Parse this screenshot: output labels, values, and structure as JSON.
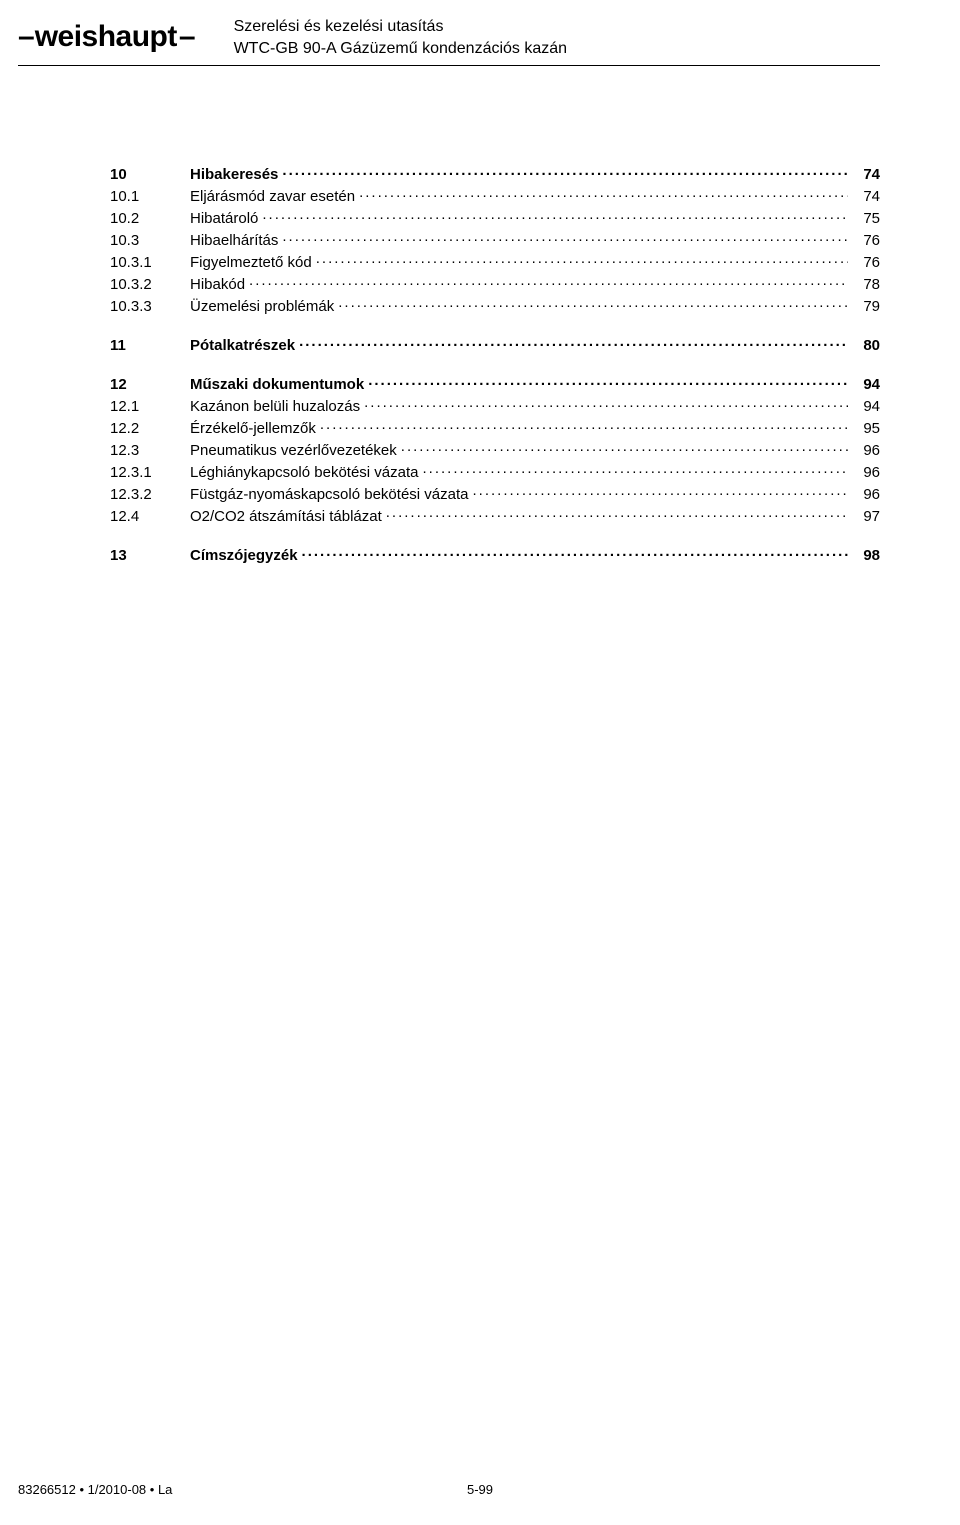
{
  "header": {
    "logo_text": "weishaupt",
    "line1": "Szerelési és kezelési utasítás",
    "line2": "WTC-GB 90-A Gázüzemű kondenzációs kazán"
  },
  "toc": [
    {
      "group": [
        {
          "num": "10",
          "title": "Hibakeresés",
          "page": "74",
          "bold": true
        },
        {
          "num": "10.1",
          "title": "Eljárásmód zavar esetén",
          "page": "74",
          "bold": false
        },
        {
          "num": "10.2",
          "title": "Hibatároló",
          "page": "75",
          "bold": false
        },
        {
          "num": "10.3",
          "title": "Hibaelhárítás",
          "page": "76",
          "bold": false
        },
        {
          "num": "10.3.1",
          "title": "Figyelmeztető kód",
          "page": "76",
          "bold": false
        },
        {
          "num": "10.3.2",
          "title": "Hibakód",
          "page": "78",
          "bold": false
        },
        {
          "num": "10.3.3",
          "title": "Üzemelési problémák",
          "page": "79",
          "bold": false
        }
      ]
    },
    {
      "group": [
        {
          "num": "11",
          "title": "Pótalkatrészek",
          "page": "80",
          "bold": true
        }
      ]
    },
    {
      "group": [
        {
          "num": "12",
          "title": "Műszaki dokumentumok",
          "page": "94",
          "bold": true
        },
        {
          "num": "12.1",
          "title": "Kazánon belüli huzalozás",
          "page": "94",
          "bold": false
        },
        {
          "num": "12.2",
          "title": "Érzékelő-jellemzők",
          "page": "95",
          "bold": false
        },
        {
          "num": "12.3",
          "title": "Pneumatikus vezérlővezetékek",
          "page": "96",
          "bold": false
        },
        {
          "num": "12.3.1",
          "title": "Léghiánykapcsoló bekötési vázata",
          "page": "96",
          "bold": false
        },
        {
          "num": "12.3.2",
          "title": "Füstgáz-nyomáskapcsoló bekötési vázata",
          "page": "96",
          "bold": false
        },
        {
          "num": "12.4",
          "title": "O2/CO2 átszámítási táblázat",
          "page": "97",
          "bold": false
        }
      ]
    },
    {
      "group": [
        {
          "num": "13",
          "title": "Címszójegyzék",
          "page": "98",
          "bold": true
        }
      ]
    }
  ],
  "footer": {
    "left": "83266512 • 1/2010-08 • La",
    "center": "5-99"
  }
}
